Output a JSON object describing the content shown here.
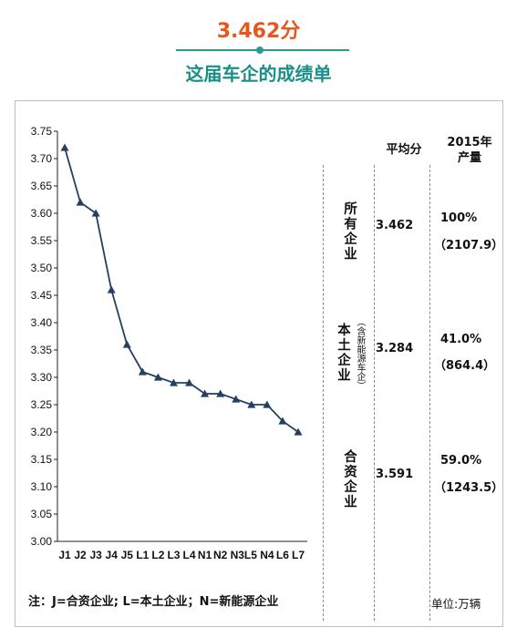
{
  "header": {
    "score": "3.462分",
    "subtitle": "这届车企的成绩单"
  },
  "chart_data": {
    "type": "line",
    "title": "",
    "xlabel": "",
    "ylabel": "",
    "ylim": [
      3.0,
      3.75
    ],
    "y_ticks": [
      "3.00",
      "3.05",
      "3.10",
      "3.15",
      "3.20",
      "3.25",
      "3.30",
      "3.35",
      "3.40",
      "3.45",
      "3.50",
      "3.55",
      "3.60",
      "3.65",
      "3.70",
      "3.75"
    ],
    "categories": [
      "J1",
      "J2",
      "J3",
      "J4",
      "J5",
      "L1",
      "L2",
      "L3",
      "L4",
      "N1",
      "N2",
      "N3",
      "L5",
      "N4",
      "L6",
      "L7"
    ],
    "x_tick_labels": [
      "J1",
      "J2",
      "J3",
      "J4",
      "J5",
      "L1",
      "L2",
      "L3",
      "L4",
      "N1",
      "N2",
      "N3L5",
      "N4",
      "L6",
      "L7"
    ],
    "values": [
      3.72,
      3.62,
      3.6,
      3.46,
      3.36,
      3.31,
      3.3,
      3.29,
      3.29,
      3.27,
      3.27,
      3.26,
      3.25,
      3.25,
      3.22,
      3.2
    ],
    "line_color": "#243f60",
    "marker": "triangle",
    "grid": false,
    "legend": "none"
  },
  "table": {
    "col_avg_header": "平均分",
    "col_prod_header_1": "2015年",
    "col_prod_header_2": "产量",
    "rows": [
      {
        "label": "所有企业",
        "sublabel": "",
        "avg": "3.462",
        "pct": "100%",
        "prod": "（2107.9）"
      },
      {
        "label": "本土企业",
        "sublabel": "（含新能源车企）",
        "avg": "3.284",
        "pct": "41.0%",
        "prod": "（864.4）"
      },
      {
        "label": "合资企业",
        "sublabel": "",
        "avg": "3.591",
        "pct": "59.0%",
        "prod": "（1243.5）"
      }
    ]
  },
  "note": "注：J=合资企业; L=本土企业；N=新能源企业",
  "unit": "单位:万辆",
  "colors": {
    "score": "#e8561d",
    "subtitle": "#1a8f86",
    "line": "#243f60"
  }
}
